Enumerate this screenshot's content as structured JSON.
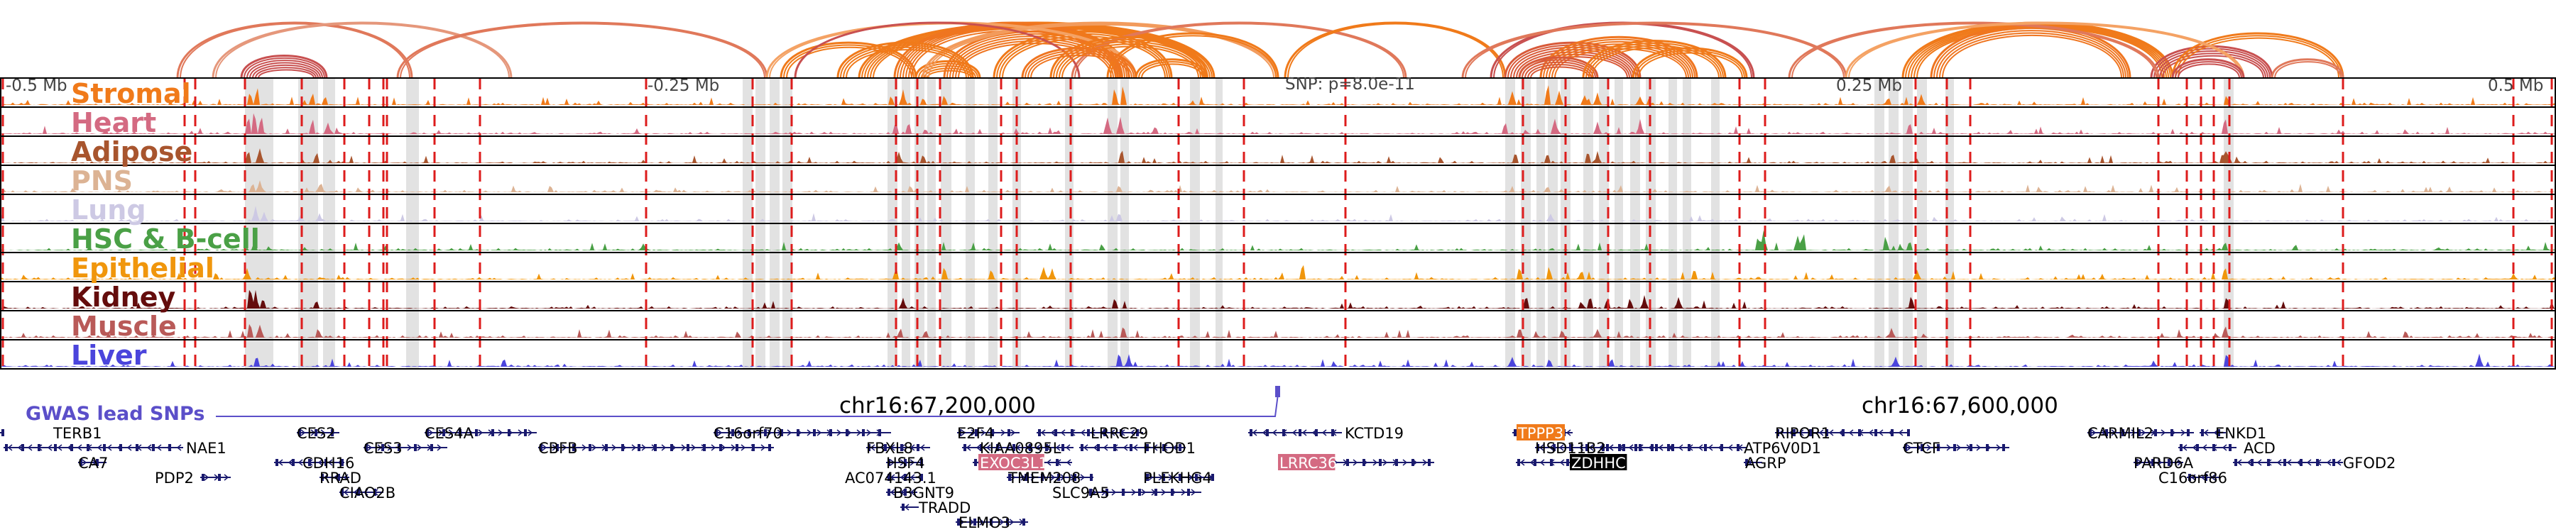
{
  "figure": {
    "distance_labels": [
      "-0.5 Mb",
      "-0.25 Mb",
      "0.25 Mb",
      "0.5 Mb"
    ],
    "snp_label": "SNP: p=8.0e-11",
    "coordinate_labels": [
      "chr16:67,200,000",
      "chr16:67,600,000"
    ],
    "gwas_label": "GWAS lead SNPs",
    "colors": {
      "frame": "#000000",
      "highlight": "#e2e2e2",
      "dashed": "#dd1c1c",
      "gwas": "#5b4fc9",
      "gene": "#1a1a6e"
    }
  },
  "tracks": [
    {
      "label": "Stromal",
      "color": "#f07a1a"
    },
    {
      "label": "Heart",
      "color": "#d46a82"
    },
    {
      "label": "Adipose",
      "color": "#a8552e"
    },
    {
      "label": "PNS",
      "color": "#dcb394"
    },
    {
      "label": "Lung",
      "color": "#cdc9e4"
    },
    {
      "label": "HSC & B-cell",
      "color": "#4aa046"
    },
    {
      "label": "Epithelial",
      "color": "#f0960c"
    },
    {
      "label": "Kidney",
      "color": "#640c0c"
    },
    {
      "label": "Muscle",
      "color": "#b95a58"
    },
    {
      "label": "Liver",
      "color": "#4b45dc"
    }
  ],
  "genes": [
    {
      "name": "TERB1",
      "row": 0,
      "highlight": ""
    },
    {
      "name": "CES2",
      "row": 0,
      "highlight": ""
    },
    {
      "name": "CES4A",
      "row": 0,
      "highlight": ""
    },
    {
      "name": "C16orf70",
      "row": 0,
      "highlight": ""
    },
    {
      "name": "E2F4",
      "row": 0,
      "highlight": ""
    },
    {
      "name": "LRRC29",
      "row": 0,
      "highlight": ""
    },
    {
      "name": "KCTD19",
      "row": 0,
      "highlight": ""
    },
    {
      "name": "TPPP3",
      "row": 0,
      "highlight": "#f07a1a"
    },
    {
      "name": "RIPOR1",
      "row": 0,
      "highlight": ""
    },
    {
      "name": "CARMIL2",
      "row": 0,
      "highlight": ""
    },
    {
      "name": "ENKD1",
      "row": 0,
      "highlight": ""
    },
    {
      "name": "NAE1",
      "row": 1,
      "highlight": ""
    },
    {
      "name": "CES3",
      "row": 1,
      "highlight": ""
    },
    {
      "name": "CBFB",
      "row": 1,
      "highlight": ""
    },
    {
      "name": "FBXL8",
      "row": 1,
      "highlight": ""
    },
    {
      "name": "KIAA0895L",
      "row": 1,
      "highlight": ""
    },
    {
      "name": "FHOD1",
      "row": 1,
      "highlight": ""
    },
    {
      "name": "HSD11B2",
      "row": 1,
      "highlight": ""
    },
    {
      "name": "ATP6V0D1",
      "row": 1,
      "highlight": ""
    },
    {
      "name": "CTCF",
      "row": 1,
      "highlight": ""
    },
    {
      "name": "ACD",
      "row": 1,
      "highlight": ""
    },
    {
      "name": "CA7",
      "row": 2,
      "highlight": ""
    },
    {
      "name": "CDH16",
      "row": 2,
      "highlight": ""
    },
    {
      "name": "HSF4",
      "row": 2,
      "highlight": ""
    },
    {
      "name": "EXOC3L1",
      "row": 2,
      "highlight": "#d46a82"
    },
    {
      "name": "LRRC36",
      "row": 2,
      "highlight": "#d46a82"
    },
    {
      "name": "ZDHHC1",
      "row": 2,
      "highlight": "#000000"
    },
    {
      "name": "AGRP",
      "row": 2,
      "highlight": ""
    },
    {
      "name": "PARD6A",
      "row": 2,
      "highlight": ""
    },
    {
      "name": "GFOD2",
      "row": 2,
      "highlight": ""
    },
    {
      "name": "PDP2",
      "row": 3,
      "highlight": ""
    },
    {
      "name": "RRAD",
      "row": 3,
      "highlight": ""
    },
    {
      "name": "AC074143.1",
      "row": 3,
      "highlight": ""
    },
    {
      "name": "TMEM208",
      "row": 3,
      "highlight": ""
    },
    {
      "name": "PLEKHG4",
      "row": 3,
      "highlight": ""
    },
    {
      "name": "C16orf86",
      "row": 3,
      "highlight": ""
    },
    {
      "name": "CIAO2B",
      "row": 4,
      "highlight": ""
    },
    {
      "name": "B3GNT9",
      "row": 4,
      "highlight": ""
    },
    {
      "name": "SLC9A5",
      "row": 4,
      "highlight": ""
    },
    {
      "name": "TRADD",
      "row": 5,
      "highlight": ""
    },
    {
      "name": "ELMO3",
      "row": 6,
      "highlight": ""
    }
  ]
}
